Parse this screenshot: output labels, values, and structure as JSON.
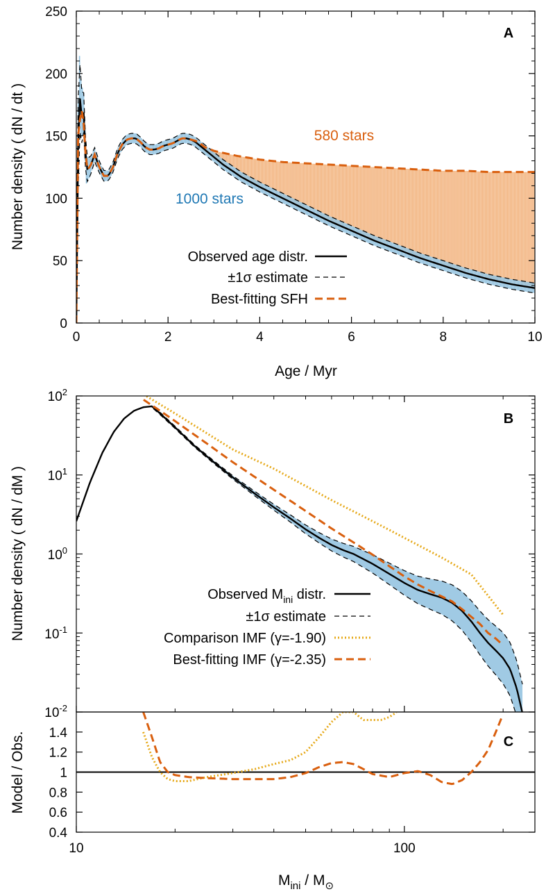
{
  "colors": {
    "blue_fill": "#8fc1df",
    "blue_text": "#1f78b4",
    "orange": "#d95f0e",
    "orange_fill": "#f2b27c",
    "gold": "#e6a817",
    "black": "#000000"
  },
  "chart_data": [
    {
      "panel": "A",
      "type": "area",
      "xlabel": "Age / Myr",
      "ylabel": "Number density ( dN / dt )",
      "xlim": [
        0,
        10
      ],
      "ylim": [
        0,
        250
      ],
      "xticks": [
        "0",
        "2",
        "4",
        "6",
        "8",
        "10"
      ],
      "yticks": [
        "0",
        "50",
        "100",
        "150",
        "200",
        "250"
      ],
      "annotations": {
        "blue": "1000 stars",
        "orange": "580 stars"
      },
      "legend": {
        "position": "bottom-right",
        "entries": [
          "Observed age distr.",
          "±1σ estimate",
          "Best-fitting SFH"
        ]
      },
      "series": [
        {
          "name": "Observed age distr.",
          "style": "solid",
          "x": [
            0,
            0.03,
            0.06,
            0.09,
            0.12,
            0.15,
            0.18,
            0.22,
            0.3,
            0.4,
            0.5,
            0.6,
            0.7,
            0.8,
            0.9,
            1.0,
            1.1,
            1.2,
            1.3,
            1.4,
            1.5,
            1.6,
            1.7,
            1.8,
            1.9,
            2.0,
            2.1,
            2.2,
            2.3,
            2.4,
            2.5,
            2.6,
            2.7,
            2.8,
            3.0,
            3.2,
            3.4,
            3.6,
            3.8,
            4.0,
            4.5,
            5.0,
            5.5,
            6.0,
            6.5,
            7.0,
            7.5,
            8.0,
            8.5,
            9.0,
            9.5,
            10.0
          ],
          "y": [
            0,
            120,
            190,
            175,
            165,
            178,
            150,
            123,
            125,
            135,
            125,
            118,
            118,
            125,
            136,
            143,
            147,
            148,
            148,
            145,
            141,
            139,
            139,
            140,
            142,
            143,
            144,
            146,
            148,
            148,
            147,
            145,
            142,
            139,
            133,
            127,
            122,
            117,
            113,
            109,
            100,
            91,
            82,
            74,
            66,
            59,
            52,
            46,
            40,
            35,
            31,
            28
          ]
        },
        {
          "name": "Best-fitting SFH",
          "style": "dashed",
          "x": [
            0,
            0.03,
            0.06,
            0.09,
            0.12,
            0.15,
            0.18,
            0.22,
            0.3,
            0.4,
            0.5,
            0.6,
            0.7,
            0.8,
            0.9,
            1.0,
            1.1,
            1.2,
            1.3,
            1.4,
            1.5,
            1.6,
            1.7,
            1.8,
            1.9,
            2.0,
            2.1,
            2.2,
            2.3,
            2.4,
            2.5,
            2.6,
            2.7,
            2.8,
            3.0,
            3.5,
            4.0,
            4.5,
            5.0,
            5.5,
            6.0,
            6.5,
            7.0,
            7.5,
            8.0,
            8.5,
            9.0,
            9.5,
            10.0
          ],
          "y": [
            0,
            140,
            170,
            160,
            170,
            165,
            150,
            123,
            125,
            135,
            125,
            118,
            118,
            125,
            136,
            143,
            147,
            148,
            148,
            145,
            141,
            139,
            139,
            140,
            142,
            143,
            144,
            146,
            148,
            148,
            147,
            146,
            144,
            141,
            138,
            134,
            131,
            129,
            128,
            127,
            126,
            125,
            124,
            123,
            122,
            122,
            121,
            121,
            121
          ]
        }
      ]
    },
    {
      "panel": "B",
      "type": "line",
      "xlabel": "M_ini / M_sun",
      "ylabel": "Number density ( dN / dM )",
      "xscale": "log",
      "yscale": "log",
      "xlim": [
        10,
        250
      ],
      "ylim": [
        0.01,
        100
      ],
      "yticks": [
        {
          "base": "10",
          "exp": "2"
        },
        {
          "base": "10",
          "exp": "1"
        },
        {
          "base": "10",
          "exp": "0"
        },
        {
          "base": "10",
          "exp": "-1"
        },
        {
          "base": "10",
          "exp": "-2"
        }
      ],
      "legend": {
        "position": "bottom-right",
        "entries": [
          {
            "main": "Observed M",
            "sub": "ini",
            "rest": " distr."
          },
          {
            "main": "±1σ estimate",
            "sub": "",
            "rest": ""
          },
          {
            "main": "Comparison IMF (γ=-1.90)",
            "sub": "",
            "rest": ""
          },
          {
            "main": "Best-fitting IMF (γ=-2.35)",
            "sub": "",
            "rest": ""
          }
        ]
      },
      "series": [
        {
          "name": "Observed M_ini distr.",
          "style": "solid",
          "x": [
            10,
            11,
            12,
            13,
            14,
            15,
            16,
            17,
            18,
            20,
            23,
            26,
            30,
            35,
            40,
            45,
            50,
            55,
            60,
            65,
            70,
            80,
            90,
            100,
            110,
            120,
            130,
            140,
            150,
            160,
            170,
            180,
            190,
            200,
            210,
            220,
            230
          ],
          "y": [
            2.6,
            8,
            19,
            35,
            52,
            65,
            72,
            74,
            60,
            40,
            23,
            15,
            9.3,
            5.8,
            3.9,
            2.8,
            2.05,
            1.6,
            1.3,
            1.12,
            1.0,
            0.75,
            0.56,
            0.43,
            0.35,
            0.31,
            0.28,
            0.24,
            0.19,
            0.14,
            0.1,
            0.075,
            0.06,
            0.048,
            0.035,
            0.02,
            0.009
          ]
        },
        {
          "name": "Comparison IMF (γ=-1.90)",
          "style": "dotted",
          "x": [
            16,
            20,
            30,
            40,
            60,
            80,
            100,
            130,
            160,
            200
          ],
          "y": [
            105,
            60,
            21,
            12,
            4.8,
            2.6,
            1.6,
            0.9,
            0.55,
            0.17
          ]
        },
        {
          "name": "Best-fitting IMF (γ=-2.35)",
          "style": "dashed",
          "x": [
            16,
            18,
            20,
            25,
            30,
            40,
            50,
            60,
            70,
            80,
            90,
            100,
            110,
            120,
            130,
            140,
            150,
            160,
            170,
            180,
            190,
            200
          ],
          "y": [
            90,
            65,
            48,
            25,
            14.5,
            6.5,
            3.5,
            2.1,
            1.4,
            0.98,
            0.7,
            0.52,
            0.41,
            0.34,
            0.29,
            0.25,
            0.2,
            0.16,
            0.13,
            0.1,
            0.085,
            0.07
          ]
        }
      ]
    },
    {
      "panel": "C",
      "type": "line",
      "xlabel": "M_ini / M_sun",
      "ylabel": "Model / Obs.",
      "xscale": "log",
      "xlim": [
        10,
        250
      ],
      "ylim": [
        0.4,
        1.6
      ],
      "xticks": [
        "10",
        "100"
      ],
      "yticks": [
        "0.4",
        "0.6",
        "0.8",
        "1",
        "1.2",
        "1.4"
      ],
      "series": [
        {
          "name": "Observed",
          "style": "solid",
          "x": [
            10,
            250
          ],
          "y": [
            1,
            1
          ]
        },
        {
          "name": "Comparison IMF (γ=-1.90)",
          "style": "dotted",
          "x": [
            16,
            17,
            18,
            19,
            20,
            22,
            25,
            30,
            35,
            40,
            45,
            50,
            55,
            60,
            65,
            70,
            75,
            80,
            85,
            90,
            95
          ],
          "y": [
            1.4,
            1.15,
            1.0,
            0.93,
            0.91,
            0.91,
            0.95,
            0.99,
            1.03,
            1.08,
            1.12,
            1.2,
            1.35,
            1.5,
            1.6,
            1.6,
            1.52,
            1.52,
            1.52,
            1.55,
            1.6
          ]
        },
        {
          "name": "Best-fitting IMF (γ=-2.35)",
          "style": "dashed",
          "x": [
            16,
            17,
            18,
            19,
            20,
            22,
            25,
            30,
            35,
            40,
            45,
            50,
            55,
            60,
            65,
            70,
            75,
            80,
            90,
            100,
            110,
            120,
            130,
            140,
            150,
            160,
            170,
            180,
            190,
            200
          ],
          "y": [
            1.6,
            1.35,
            1.1,
            1.0,
            0.97,
            0.95,
            0.94,
            0.93,
            0.93,
            0.93,
            0.95,
            0.99,
            1.05,
            1.09,
            1.1,
            1.08,
            1.03,
            0.98,
            0.95,
            0.99,
            1.01,
            0.97,
            0.9,
            0.88,
            0.92,
            1.0,
            1.1,
            1.22,
            1.4,
            1.58
          ]
        }
      ]
    }
  ]
}
